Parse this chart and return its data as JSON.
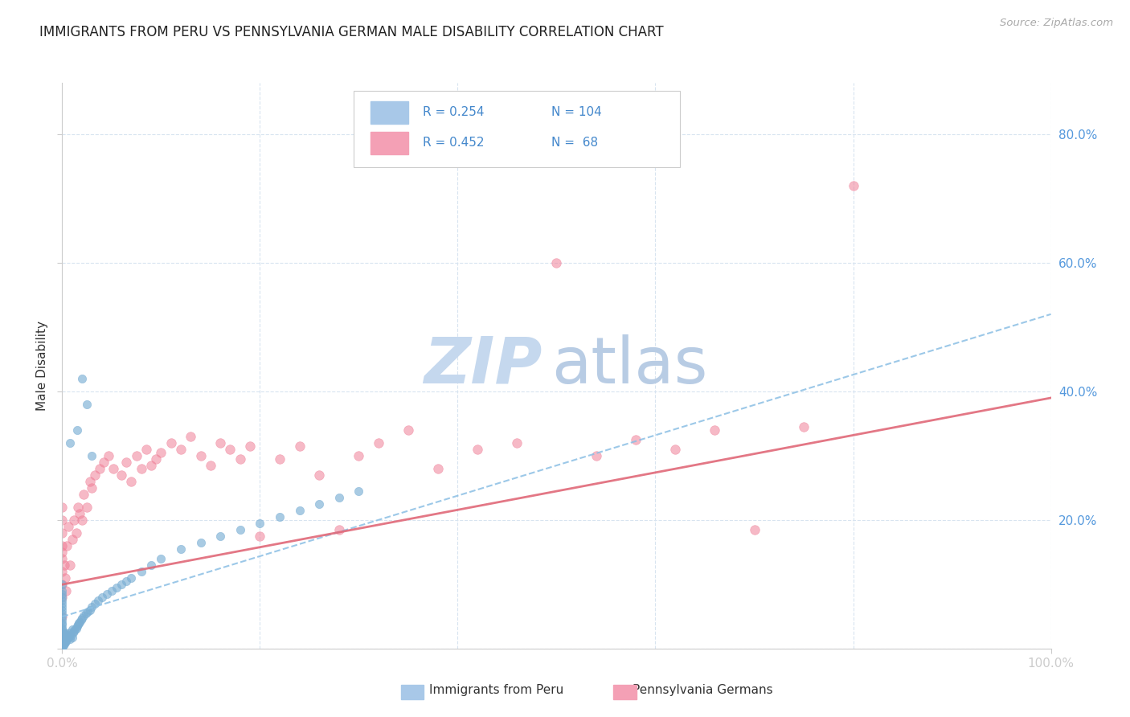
{
  "title": "IMMIGRANTS FROM PERU VS PENNSYLVANIA GERMAN MALE DISABILITY CORRELATION CHART",
  "source_text": "Source: ZipAtlas.com",
  "ylabel": "Male Disability",
  "xlim": [
    0.0,
    1.0
  ],
  "ylim": [
    0.0,
    0.88
  ],
  "blue_color": "#7bafd4",
  "pink_color": "#f08098",
  "blue_line_color": "#8bbfe4",
  "pink_line_color": "#e06878",
  "grid_color": "#d8e4f0",
  "watermark_zip_color": "#c5d8ee",
  "watermark_atlas_color": "#b8cce4",
  "background_color": "#ffffff",
  "title_color": "#222222",
  "axis_label_color": "#333333",
  "tick_label_color": "#5599dd",
  "source_color": "#aaaaaa",
  "legend_box_color": "#dddddd",
  "legend_text_color": "#4488cc",
  "blue_scatter_x": [
    0.0,
    0.0,
    0.0,
    0.0,
    0.0,
    0.0,
    0.0,
    0.0,
    0.0,
    0.0,
    0.0,
    0.0,
    0.0,
    0.0,
    0.0,
    0.0,
    0.0,
    0.0,
    0.0,
    0.0,
    0.0,
    0.0,
    0.0,
    0.0,
    0.0,
    0.0,
    0.0,
    0.0,
    0.0,
    0.0,
    0.0,
    0.0,
    0.0,
    0.0,
    0.0,
    0.0,
    0.0,
    0.0,
    0.0,
    0.0,
    0.001,
    0.001,
    0.001,
    0.001,
    0.001,
    0.002,
    0.002,
    0.002,
    0.003,
    0.003,
    0.003,
    0.004,
    0.004,
    0.005,
    0.005,
    0.006,
    0.007,
    0.008,
    0.008,
    0.009,
    0.01,
    0.01,
    0.011,
    0.012,
    0.013,
    0.014,
    0.015,
    0.016,
    0.017,
    0.018,
    0.019,
    0.02,
    0.022,
    0.024,
    0.026,
    0.028,
    0.03,
    0.033,
    0.036,
    0.04,
    0.045,
    0.05,
    0.055,
    0.06,
    0.065,
    0.07,
    0.08,
    0.09,
    0.1,
    0.12,
    0.14,
    0.16,
    0.18,
    0.2,
    0.22,
    0.24,
    0.26,
    0.28,
    0.3,
    0.02,
    0.015,
    0.025,
    0.008,
    0.03
  ],
  "blue_scatter_y": [
    0.0,
    0.0,
    0.0,
    0.0,
    0.0,
    0.0,
    0.0,
    0.0,
    0.005,
    0.005,
    0.005,
    0.008,
    0.008,
    0.01,
    0.01,
    0.012,
    0.013,
    0.015,
    0.015,
    0.017,
    0.018,
    0.02,
    0.022,
    0.025,
    0.027,
    0.03,
    0.033,
    0.038,
    0.04,
    0.045,
    0.05,
    0.055,
    0.06,
    0.065,
    0.07,
    0.075,
    0.08,
    0.085,
    0.09,
    0.1,
    0.005,
    0.01,
    0.015,
    0.02,
    0.025,
    0.008,
    0.015,
    0.022,
    0.01,
    0.018,
    0.025,
    0.012,
    0.02,
    0.015,
    0.022,
    0.018,
    0.02,
    0.015,
    0.025,
    0.02,
    0.018,
    0.03,
    0.025,
    0.028,
    0.03,
    0.032,
    0.035,
    0.038,
    0.04,
    0.042,
    0.045,
    0.048,
    0.052,
    0.055,
    0.058,
    0.06,
    0.065,
    0.07,
    0.075,
    0.08,
    0.085,
    0.09,
    0.095,
    0.1,
    0.105,
    0.11,
    0.12,
    0.13,
    0.14,
    0.155,
    0.165,
    0.175,
    0.185,
    0.195,
    0.205,
    0.215,
    0.225,
    0.235,
    0.245,
    0.42,
    0.34,
    0.38,
    0.32,
    0.3
  ],
  "pink_scatter_x": [
    0.0,
    0.0,
    0.0,
    0.0,
    0.0,
    0.0,
    0.0,
    0.0,
    0.0,
    0.0,
    0.002,
    0.003,
    0.004,
    0.005,
    0.006,
    0.008,
    0.01,
    0.012,
    0.014,
    0.016,
    0.018,
    0.02,
    0.022,
    0.025,
    0.028,
    0.03,
    0.033,
    0.038,
    0.042,
    0.047,
    0.052,
    0.06,
    0.065,
    0.07,
    0.075,
    0.08,
    0.085,
    0.09,
    0.095,
    0.1,
    0.11,
    0.12,
    0.13,
    0.14,
    0.15,
    0.16,
    0.17,
    0.18,
    0.19,
    0.2,
    0.22,
    0.24,
    0.26,
    0.28,
    0.3,
    0.32,
    0.35,
    0.38,
    0.42,
    0.46,
    0.5,
    0.54,
    0.58,
    0.62,
    0.66,
    0.7,
    0.75,
    0.8
  ],
  "pink_scatter_y": [
    0.05,
    0.08,
    0.1,
    0.12,
    0.14,
    0.16,
    0.18,
    0.2,
    0.22,
    0.15,
    0.13,
    0.11,
    0.09,
    0.16,
    0.19,
    0.13,
    0.17,
    0.2,
    0.18,
    0.22,
    0.21,
    0.2,
    0.24,
    0.22,
    0.26,
    0.25,
    0.27,
    0.28,
    0.29,
    0.3,
    0.28,
    0.27,
    0.29,
    0.26,
    0.3,
    0.28,
    0.31,
    0.285,
    0.295,
    0.305,
    0.32,
    0.31,
    0.33,
    0.3,
    0.285,
    0.32,
    0.31,
    0.295,
    0.315,
    0.175,
    0.295,
    0.315,
    0.27,
    0.185,
    0.3,
    0.32,
    0.34,
    0.28,
    0.31,
    0.32,
    0.6,
    0.3,
    0.325,
    0.31,
    0.34,
    0.185,
    0.345,
    0.72
  ],
  "blue_trend_x": [
    0.0,
    1.0
  ],
  "blue_trend_y": [
    0.05,
    0.52
  ],
  "pink_trend_x": [
    0.0,
    1.0
  ],
  "pink_trend_y": [
    0.1,
    0.39
  ],
  "ytick_vals": [
    0.0,
    0.2,
    0.4,
    0.6,
    0.8
  ],
  "right_ytick_labels": [
    "80.0%",
    "60.0%",
    "40.0%",
    "20.0%"
  ]
}
